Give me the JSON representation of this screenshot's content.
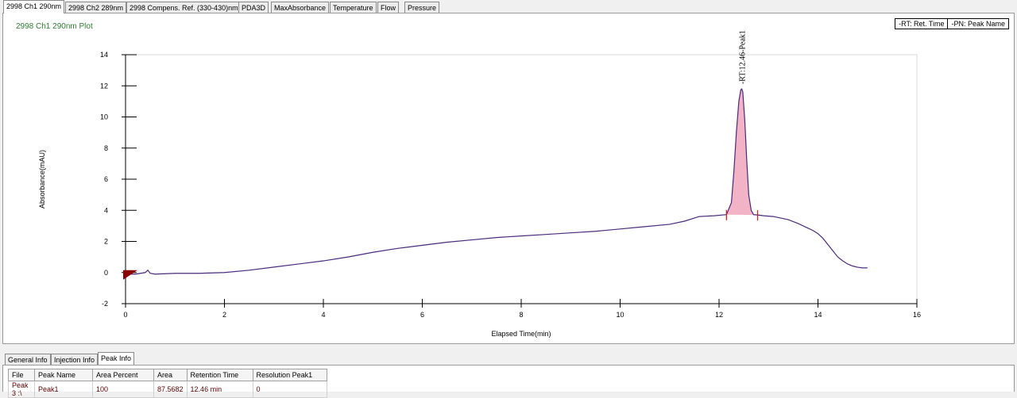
{
  "top_tabs": [
    "2998 Ch1 290nm",
    "2998 Ch2 289nm",
    "2998 Compens. Ref. (330-430)nm",
    "PDA3D",
    "MaxAbsorbance",
    "Temperature",
    "Flow",
    "Pressure"
  ],
  "plot_title": "2998 Ch1 290nm Plot",
  "legend": {
    "rt": "-RT: Ret. Time",
    "pn": "-PN: Peak Name"
  },
  "chart_data": {
    "type": "line",
    "xlabel": "Elapsed Time(min)",
    "ylabel": "Absorbance(mAU)",
    "xlim": [
      0,
      16
    ],
    "ylim": [
      -2,
      14
    ],
    "xticks": [
      0,
      2,
      4,
      6,
      8,
      10,
      12,
      14,
      16
    ],
    "yticks": [
      -2,
      0,
      2,
      4,
      6,
      8,
      10,
      12,
      14
    ],
    "series": [
      {
        "x": [
          0,
          0.2,
          0.4,
          0.45,
          0.5,
          0.6,
          1,
          1.5,
          2,
          2.5,
          3,
          3.5,
          4,
          4.5,
          5,
          5.5,
          6,
          6.5,
          7,
          7.5,
          8,
          8.5,
          9,
          9.5,
          10,
          10.5,
          11,
          11.3,
          11.6,
          11.9,
          12.15,
          12.25,
          12.3,
          12.35,
          12.4,
          12.44,
          12.46,
          12.48,
          12.52,
          12.56,
          12.6,
          12.65,
          12.7,
          12.78,
          12.9,
          13.1,
          13.4,
          13.6,
          13.8,
          13.9,
          14,
          14.1,
          14.2,
          14.3,
          14.4,
          14.5,
          14.6,
          14.7,
          14.8,
          14.9,
          15.0
        ],
        "y": [
          -0.1,
          -0.1,
          0.0,
          0.15,
          -0.05,
          -0.1,
          -0.05,
          -0.05,
          0.0,
          0.15,
          0.35,
          0.55,
          0.75,
          1.0,
          1.3,
          1.55,
          1.75,
          1.95,
          2.1,
          2.25,
          2.35,
          2.45,
          2.55,
          2.65,
          2.8,
          2.95,
          3.1,
          3.3,
          3.6,
          3.65,
          3.72,
          4.5,
          6.5,
          9.0,
          11.0,
          11.75,
          11.8,
          11.6,
          9.8,
          7.2,
          5.0,
          4.0,
          3.72,
          3.7,
          3.65,
          3.6,
          3.4,
          3.15,
          2.85,
          2.7,
          2.5,
          2.2,
          1.8,
          1.4,
          1.0,
          0.75,
          0.55,
          0.42,
          0.34,
          0.3,
          0.3
        ]
      }
    ],
    "peak": {
      "start": 12.15,
      "end": 12.78,
      "baseline_start": 3.72,
      "baseline_end": 3.7,
      "label": "-RT:12.46-Peak1"
    },
    "start_marker_x": 0
  },
  "bottom_tabs": [
    "General Info",
    "Injection Info",
    "Peak Info"
  ],
  "peak_table": {
    "headers": [
      "File",
      "Peak Name",
      "Area Percent",
      "Area",
      "Retention Time",
      "Resolution Peak1"
    ],
    "rows": [
      [
        "Peak 3 :\\",
        "Peak1",
        "100",
        "87.5682",
        "12.46 min",
        "0"
      ]
    ]
  },
  "colors": {
    "trace": "#4a2a7a",
    "peak_fill": "#f2b3c6",
    "peak_marker": "#d32020",
    "title": "#2e7d32",
    "start_marker": "#8b0000"
  }
}
